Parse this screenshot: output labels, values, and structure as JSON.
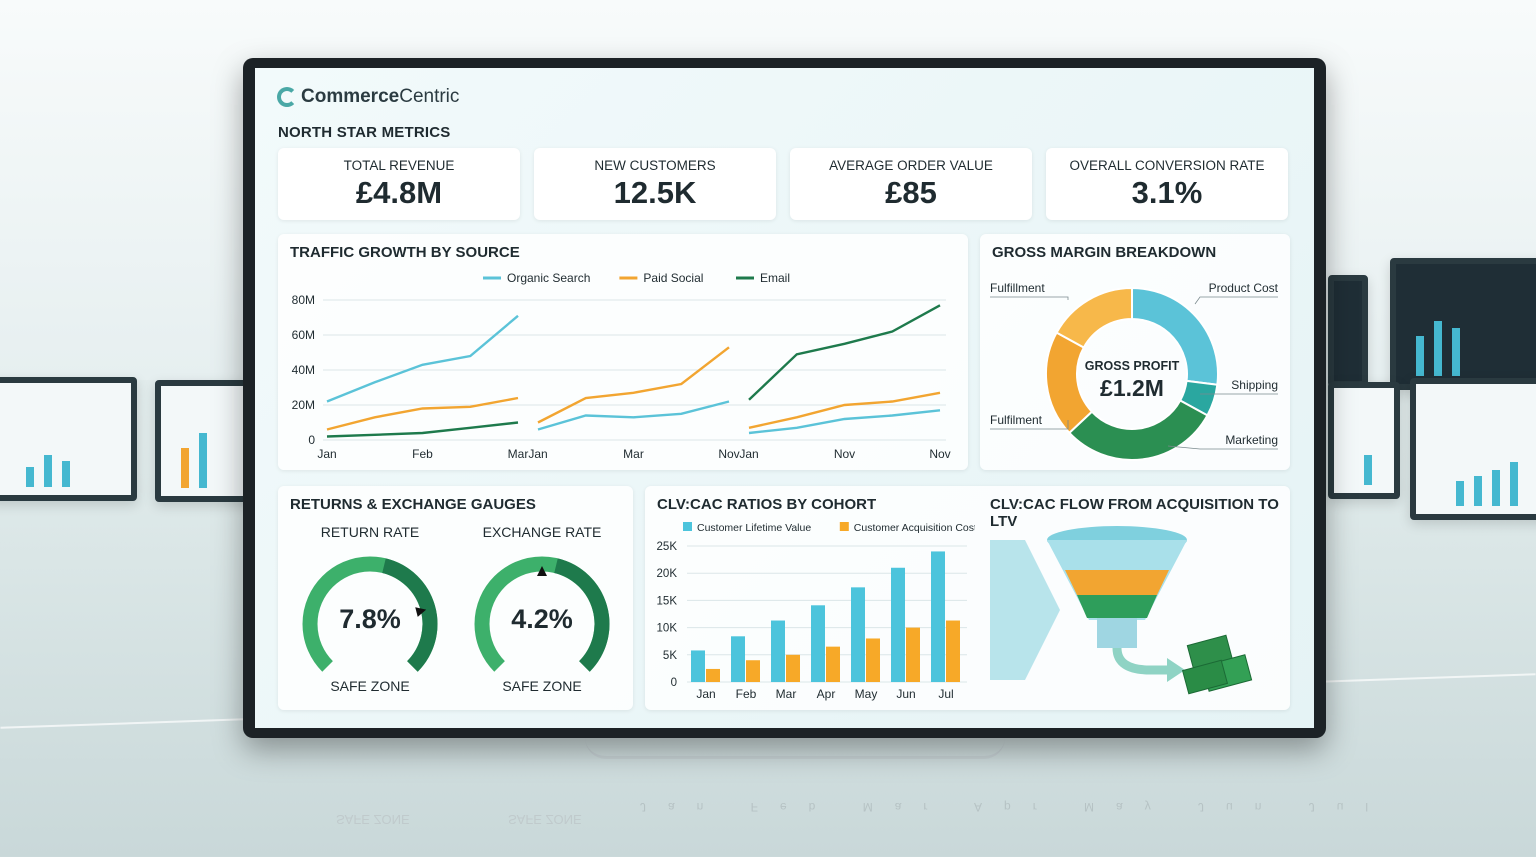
{
  "brand": {
    "name_bold": "Commerce",
    "name_rest": "Centric"
  },
  "north_star": {
    "title": "NORTH STAR METRICS",
    "kpis": [
      {
        "label": "TOTAL REVENUE",
        "value": "£4.8M"
      },
      {
        "label": "NEW CUSTOMERS",
        "value": "12.5K"
      },
      {
        "label": "AVERAGE ORDER VALUE",
        "value": "£85"
      },
      {
        "label": "OVERALL CONVERSION RATE",
        "value": "3.1%"
      }
    ]
  },
  "traffic": {
    "title": "TRAFFIC GROWTH BY SOURCE"
  },
  "margin": {
    "title": "GROSS MARGIN BREAKDOWN"
  },
  "returns": {
    "title": "RETURNS & EXCHANGE GAUGES",
    "gauges": [
      {
        "label": "RETURN RATE",
        "value": "7.8%",
        "zone": "SAFE ZONE",
        "level": 0.78
      },
      {
        "label": "EXCHANGE RATE",
        "value": "4.2%",
        "zone": "SAFE ZONE",
        "level": 0.5
      }
    ]
  },
  "clv": {
    "title": "CLV:CAC RATIOS BY COHORT"
  },
  "flow": {
    "title": "CLV:CAC FLOW FROM ACQUISITION TO LTV",
    "funnel_icon": "funnel-icon",
    "money_icon": "cash-stack-icon"
  },
  "colors": {
    "organic": "#5bc3d8",
    "paid": "#f2a531",
    "email": "#1e7a4c",
    "green": "#2e9e5b"
  },
  "chart_data": [
    {
      "type": "line",
      "title": "TRAFFIC GROWTH BY SOURCE",
      "y_ticks": [
        "0",
        "20M",
        "40M",
        "60M",
        "80M"
      ],
      "ylim": [
        0,
        80
      ],
      "legend": [
        "Organic Search",
        "Paid Social",
        "Email"
      ],
      "panels": [
        {
          "x_labels": [
            "Jan",
            "Feb",
            "Mar"
          ],
          "series": [
            {
              "name": "Organic Search",
              "values": [
                22,
                33,
                43,
                48,
                71
              ]
            },
            {
              "name": "Paid Social",
              "values": [
                6,
                13,
                18,
                19,
                24
              ]
            },
            {
              "name": "Email",
              "values": [
                2,
                3,
                4,
                7,
                10
              ]
            }
          ]
        },
        {
          "x_labels": [
            "Jan",
            "Mar",
            "Nov"
          ],
          "series": [
            {
              "name": "Organic Search",
              "values": [
                6,
                14,
                13,
                15,
                22
              ]
            },
            {
              "name": "Paid Social",
              "values": [
                10,
                24,
                27,
                32,
                53
              ]
            }
          ]
        },
        {
          "x_labels": [
            "Jan",
            "Nov",
            "Nov"
          ],
          "series": [
            {
              "name": "Email",
              "values": [
                23,
                49,
                55,
                62,
                77
              ]
            },
            {
              "name": "Paid Social",
              "values": [
                7,
                13,
                20,
                22,
                27
              ]
            },
            {
              "name": "Organic Search",
              "values": [
                4,
                7,
                12,
                14,
                17
              ]
            }
          ]
        }
      ]
    },
    {
      "type": "pie",
      "title": "GROSS MARGIN BREAKDOWN",
      "center_label": "GROSS PROFIT",
      "center_value": "£1.2M",
      "slices": [
        {
          "label": "Product Cost",
          "value": 27,
          "color": "#5bc3d8"
        },
        {
          "label": "Shipping",
          "value": 6,
          "color": "#2aa7a0"
        },
        {
          "label": "Marketing",
          "value": 30,
          "color": "#2b8f52"
        },
        {
          "label": "Fulfilment",
          "value": 20,
          "color": "#f2a531"
        },
        {
          "label": "Fulfillment",
          "value": 17,
          "color": "#f7b84a"
        }
      ]
    },
    {
      "type": "bar",
      "title": "CLV:CAC RATIOS BY COHORT",
      "categories": [
        "Jan",
        "Feb",
        "Mar",
        "Apr",
        "May",
        "Jun",
        "Jul"
      ],
      "y_ticks": [
        "0",
        "5K",
        "10K",
        "15K",
        "20K",
        "25K"
      ],
      "ylim": [
        0,
        25000
      ],
      "series": [
        {
          "name": "Customer Lifetime Value",
          "values": [
            5800,
            8400,
            11300,
            14100,
            17400,
            21000,
            24000
          ]
        },
        {
          "name": "Customer Acquisition Cost",
          "values": [
            2400,
            4000,
            5000,
            6500,
            8000,
            10000,
            11300
          ]
        }
      ]
    }
  ]
}
